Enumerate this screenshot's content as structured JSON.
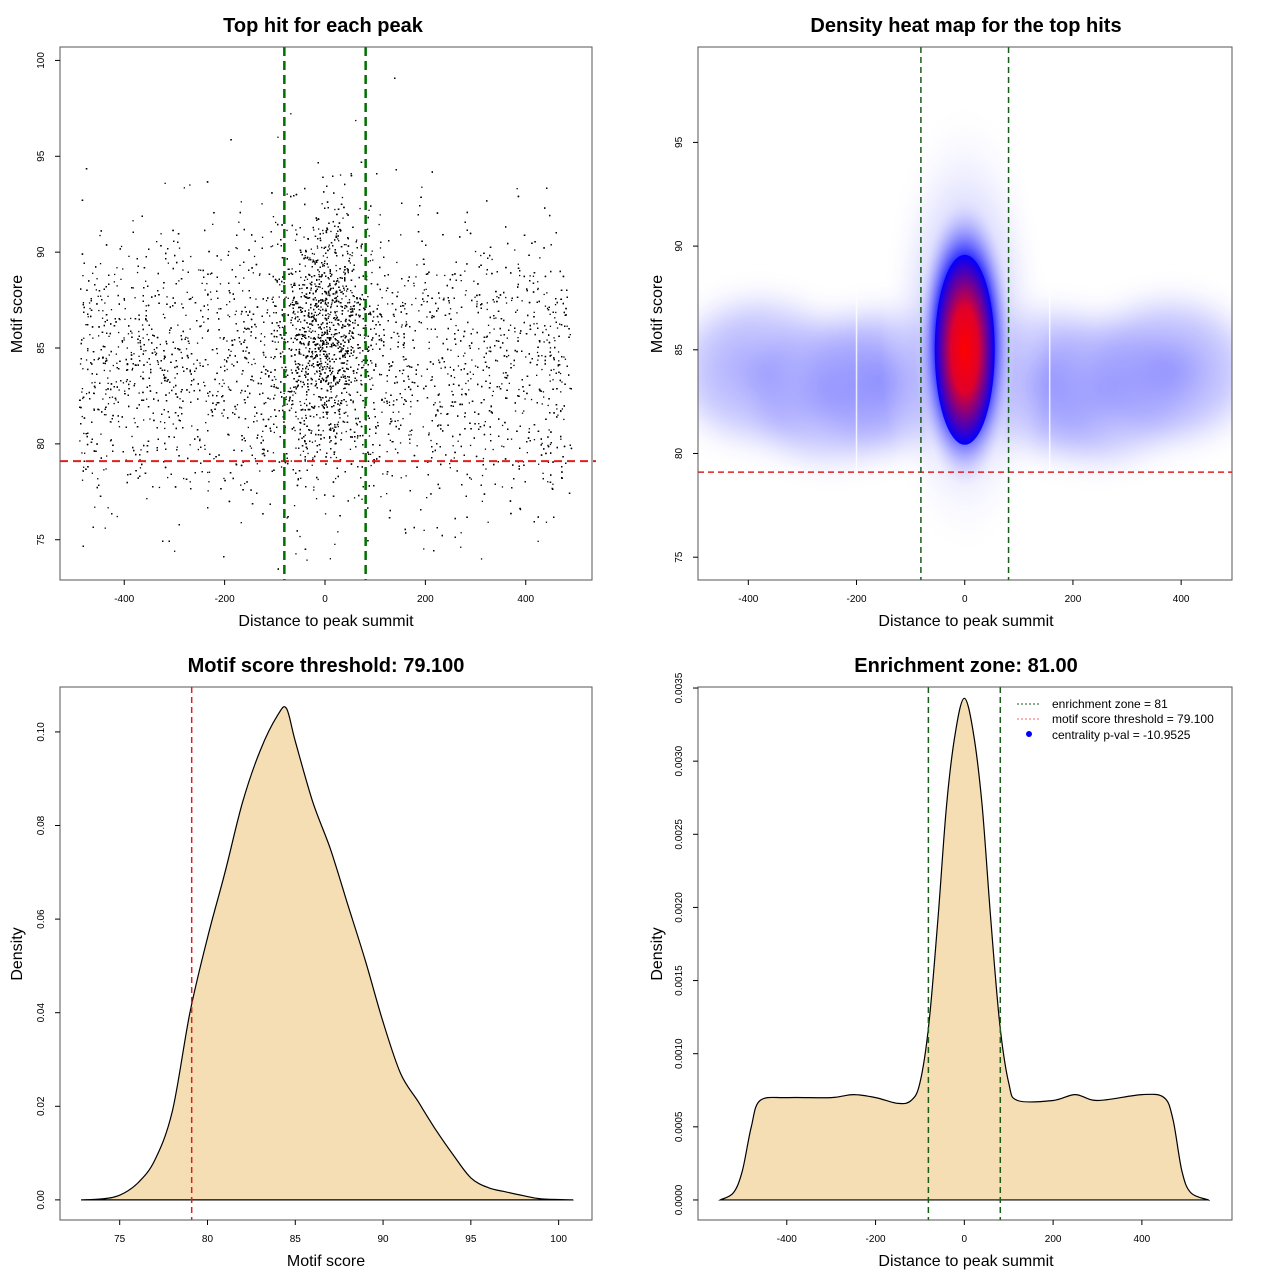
{
  "chart_data": [
    {
      "type": "scatter",
      "title": "Top hit for each peak",
      "xlabel": "Distance to peak summit",
      "ylabel": "Motif score",
      "xlim": [
        -528,
        532
      ],
      "ylim": [
        72.9,
        100.7
      ],
      "xticks": [
        -400,
        -200,
        0,
        200,
        400
      ],
      "yticks": [
        75,
        80,
        85,
        90,
        95,
        100
      ],
      "threshold_y": 79.1,
      "zone_x": [
        -81,
        81
      ],
      "colors": {
        "points": "#000000",
        "threshold": "#e02020",
        "zone": "#007000"
      }
    },
    {
      "type": "heatmap",
      "title": "Density heat map for the top hits",
      "xlabel": "Distance to peak summit",
      "ylabel": "Motif score",
      "xlim": [
        -493,
        494
      ],
      "ylim": [
        73.9,
        99.6
      ],
      "xticks": [
        -400,
        -200,
        0,
        200,
        400
      ],
      "yticks": [
        75,
        80,
        85,
        90,
        95
      ],
      "threshold_y": 79.1,
      "zone_x": [
        -81,
        81
      ],
      "peak": {
        "x": 0,
        "y": 85
      },
      "colors": {
        "low": "#ffffff",
        "mid": "#0000ff",
        "high": "#ff0000",
        "threshold": "#e02020",
        "zone": "#1a5c1a"
      }
    },
    {
      "type": "area",
      "title": "Motif score threshold: 79.100",
      "xlabel": "Motif score",
      "ylabel": "Density",
      "xlim": [
        71.6,
        101.9
      ],
      "ylim": [
        -0.0043,
        0.1096
      ],
      "xticks": [
        75,
        80,
        85,
        90,
        95,
        100
      ],
      "yticks": [
        "0.00",
        "0.02",
        "0.04",
        "0.06",
        "0.08",
        "0.10"
      ],
      "threshold_x": 79.1,
      "x": [
        72.8,
        74,
        75,
        76,
        77,
        78,
        79,
        80,
        81,
        82,
        83,
        84,
        84.5,
        85,
        86,
        87,
        88,
        89,
        90,
        91,
        92,
        93,
        94,
        95,
        96,
        97,
        98,
        99,
        100.8
      ],
      "y": [
        0,
        0.0002,
        0.001,
        0.0035,
        0.0085,
        0.019,
        0.04,
        0.056,
        0.07,
        0.085,
        0.096,
        0.1036,
        0.105,
        0.098,
        0.085,
        0.075,
        0.063,
        0.051,
        0.038,
        0.027,
        0.021,
        0.015,
        0.0096,
        0.0047,
        0.0026,
        0.0017,
        0.0009,
        0.0002,
        0
      ],
      "colors": {
        "fill": "#f5deb3",
        "line": "#000000",
        "threshold": "#e02020"
      }
    },
    {
      "type": "area",
      "title": "Enrichment zone: 81.00",
      "xlabel": "Distance to peak summit",
      "ylabel": "Density",
      "xlim": [
        -600,
        603
      ],
      "ylim": [
        -0.000137,
        0.003507
      ],
      "xticks": [
        -400,
        -200,
        0,
        200,
        400
      ],
      "yticks": [
        "0.0000",
        "0.0005",
        "0.0010",
        "0.0015",
        "0.0020",
        "0.0025",
        "0.0030",
        "0.0035"
      ],
      "zone_x": [
        -81,
        81
      ],
      "x": [
        -550,
        -520,
        -500,
        -480,
        -460,
        -400,
        -300,
        -250,
        -200,
        -150,
        -120,
        -100,
        -80,
        -60,
        -40,
        -20,
        0,
        20,
        40,
        60,
        80,
        100,
        120,
        200,
        250,
        300,
        400,
        450,
        470,
        490,
        510,
        550
      ],
      "y": [
        0,
        5e-05,
        0.0002,
        0.0005,
        0.00068,
        0.0007,
        0.0007,
        0.00072,
        0.0007,
        0.00066,
        0.00068,
        0.0008,
        0.0012,
        0.0019,
        0.0027,
        0.0032,
        0.00343,
        0.0032,
        0.0027,
        0.0019,
        0.0012,
        0.0008,
        0.00068,
        0.00068,
        0.00072,
        0.00068,
        0.00072,
        0.0007,
        0.00055,
        0.0002,
        5e-05,
        0
      ],
      "legend": {
        "position": "top-right",
        "entries": [
          "enrichment zone = 81",
          "motif score threshold = 79.100",
          "centrality p-val = -10.9525"
        ]
      },
      "colors": {
        "fill": "#f5deb3",
        "line": "#000000",
        "zone": "#1a5c1a",
        "legend_zone": "#1a5c1a",
        "legend_threshold": "#ff6060",
        "legend_pval": "#0000ff"
      }
    }
  ]
}
